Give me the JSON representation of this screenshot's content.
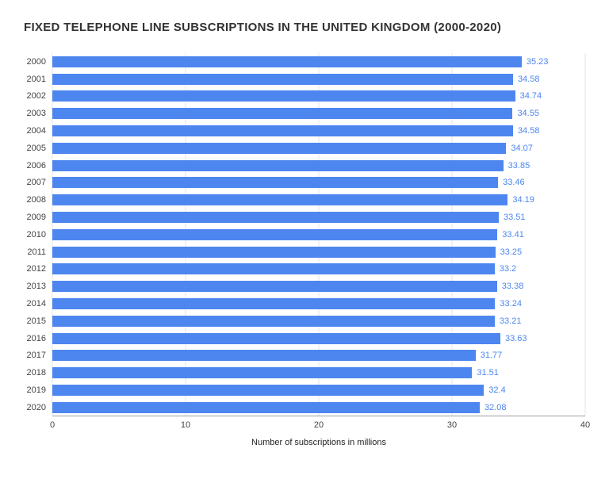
{
  "title": "FIXED TELEPHONE LINE SUBSCRIPTIONS IN THE UNITED KINGDOM (2000-2020)",
  "chart_data": {
    "type": "bar",
    "orientation": "horizontal",
    "title": "FIXED TELEPHONE LINE SUBSCRIPTIONS IN THE UNITED KINGDOM (2000-2020)",
    "categories": [
      "2000",
      "2001",
      "2002",
      "2003",
      "2004",
      "2005",
      "2006",
      "2007",
      "2008",
      "2009",
      "2010",
      "2011",
      "2012",
      "2013",
      "2014",
      "2015",
      "2016",
      "2017",
      "2018",
      "2019",
      "2020"
    ],
    "values": [
      35.23,
      34.58,
      34.74,
      34.55,
      34.58,
      34.07,
      33.85,
      33.46,
      34.19,
      33.51,
      33.41,
      33.25,
      33.2,
      33.38,
      33.24,
      33.21,
      33.63,
      31.77,
      31.51,
      32.4,
      32.08
    ],
    "xlabel": "Number of subscriptions in millions",
    "ylabel": "",
    "xlim": [
      0,
      40
    ],
    "xticks": [
      0,
      10,
      20,
      30,
      40
    ],
    "grid": true,
    "legend": "none",
    "bar_color": "#4e86f0",
    "value_label_color": "#4e86f0",
    "gridline_color": "#e6e6e6",
    "axis_line_color": "#9e9e9e"
  }
}
